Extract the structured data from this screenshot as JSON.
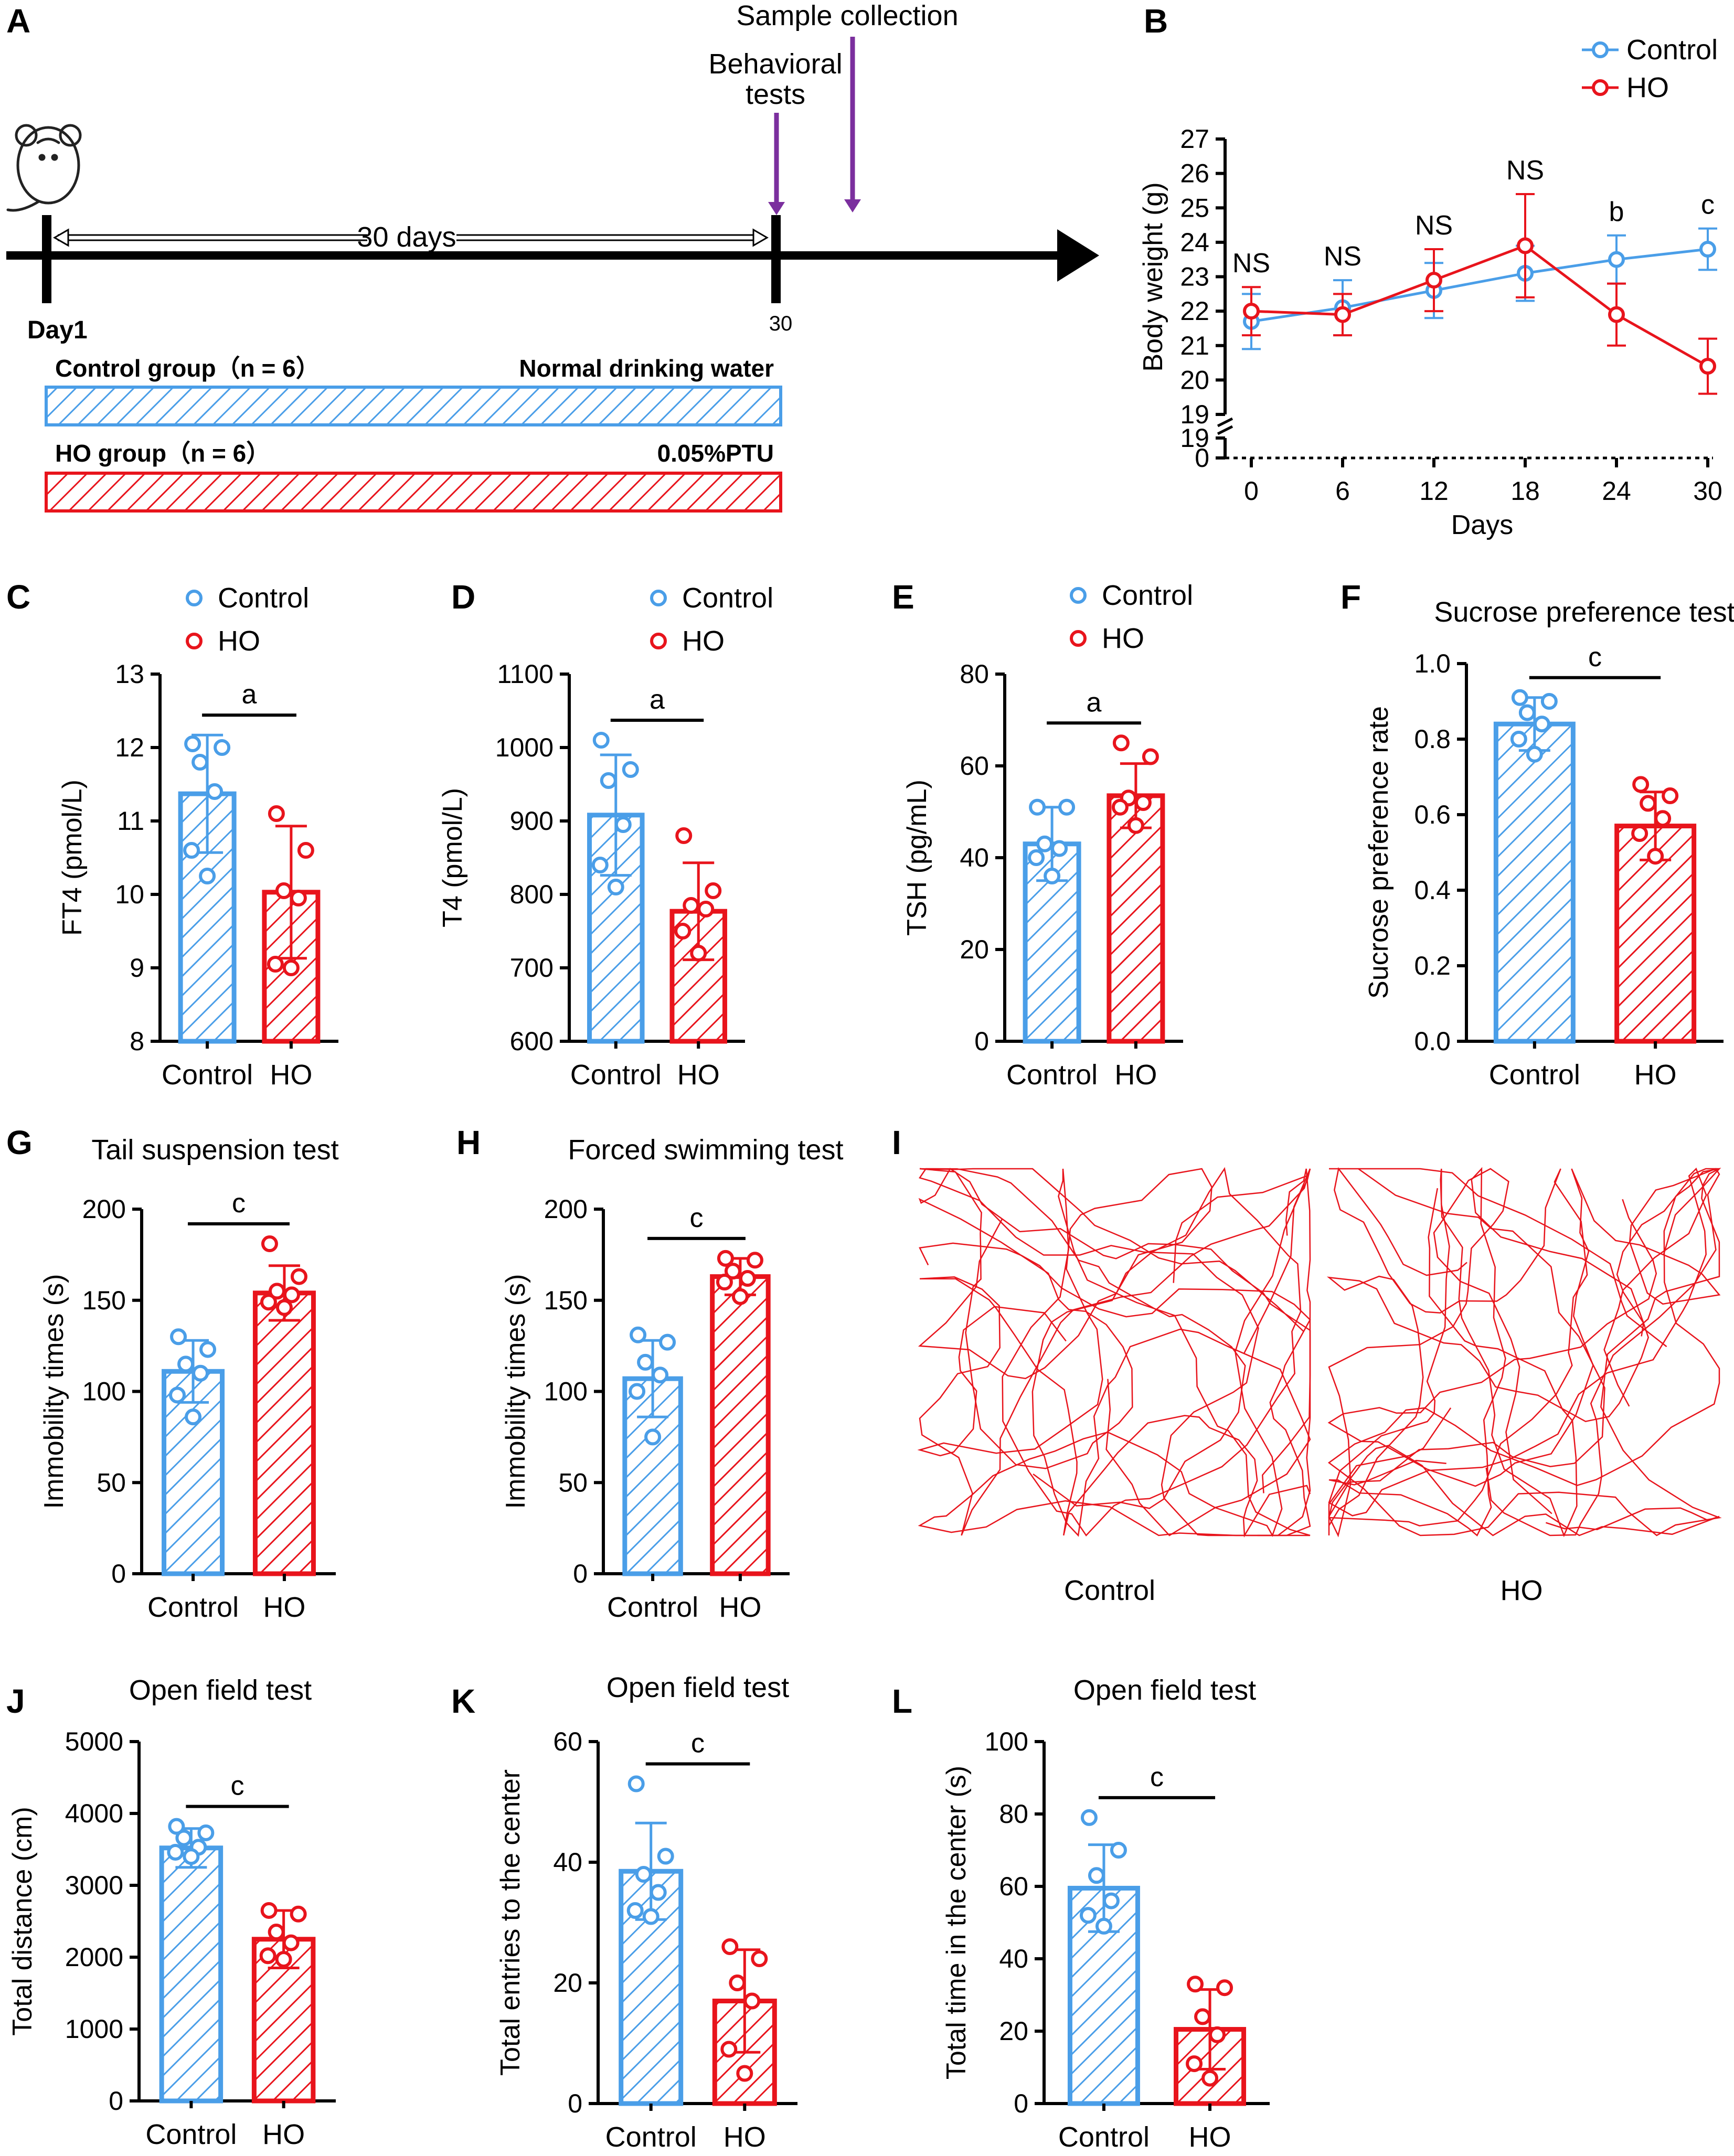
{
  "colors": {
    "control": "#4a9ee8",
    "ho": "#e8141c",
    "arrow": "#7b2f9e",
    "axis": "#000000"
  },
  "panel_letters": [
    "A",
    "B",
    "C",
    "D",
    "E",
    "F",
    "G",
    "H",
    "I",
    "J",
    "K",
    "L"
  ],
  "timeline": {
    "sample_collection": "Sample collection",
    "behavioral_tests": "Behavioral tests",
    "duration": "30 days",
    "day_start": "Day1",
    "day_end": "30",
    "control_group": "Control group（n = 6）",
    "control_treatment": "Normal drinking water",
    "ho_group": "HO group（n = 6）",
    "ho_treatment": "0.05%PTU"
  },
  "open_field_images": {
    "labels": [
      "Control",
      "HO"
    ]
  },
  "chart_data": [
    {
      "panel": "B",
      "type": "line",
      "xlabel": "Days",
      "ylabel": "Body weight (g)",
      "x": [
        0,
        6,
        12,
        18,
        24,
        30
      ],
      "ylim": [
        19,
        27
      ],
      "yticks": [
        19,
        20,
        21,
        22,
        23,
        24,
        25,
        26,
        27
      ],
      "ybreak_ticks": [
        0,
        19
      ],
      "series": [
        {
          "name": "Control",
          "values": [
            21.7,
            22.1,
            22.6,
            23.1,
            23.5,
            23.8
          ],
          "err": [
            0.8,
            0.8,
            0.8,
            0.8,
            0.7,
            0.6
          ]
        },
        {
          "name": "HO",
          "values": [
            22.0,
            21.9,
            22.9,
            23.9,
            21.9,
            20.4
          ],
          "err": [
            0.7,
            0.6,
            0.9,
            1.5,
            0.9,
            0.8
          ]
        }
      ],
      "annotations": [
        "NS",
        "NS",
        "NS",
        "NS",
        "b",
        "c"
      ]
    },
    {
      "panel": "C",
      "type": "bar",
      "title": "",
      "ylabel": "FT4 (pmol/L)",
      "categories": [
        "Control",
        "HO"
      ],
      "legend": [
        "Control",
        "HO"
      ],
      "ylim": [
        8,
        13
      ],
      "yticks": [
        8,
        9,
        10,
        11,
        12,
        13
      ],
      "means": [
        11.37,
        10.03
      ],
      "sd": [
        0.8,
        0.9
      ],
      "points": [
        [
          12.05,
          12.0,
          11.8,
          11.4,
          10.6,
          10.25
        ],
        [
          11.1,
          10.6,
          10.05,
          9.95,
          9.05,
          9.0
        ]
      ],
      "sig": "a"
    },
    {
      "panel": "D",
      "type": "bar",
      "title": "",
      "ylabel": "T4 (pmol/L)",
      "categories": [
        "Control",
        "HO"
      ],
      "legend": [
        "Control",
        "HO"
      ],
      "ylim": [
        600,
        1100
      ],
      "yticks": [
        600,
        700,
        800,
        900,
        1000,
        1100
      ],
      "means": [
        908,
        777
      ],
      "sd": [
        82,
        66
      ],
      "points": [
        [
          1010,
          970,
          955,
          895,
          840,
          810
        ],
        [
          880,
          805,
          785,
          780,
          750,
          720
        ]
      ],
      "sig": "a"
    },
    {
      "panel": "E",
      "type": "bar",
      "title": "",
      "ylabel": "TSH (pg/mL)",
      "categories": [
        "Control",
        "HO"
      ],
      "legend": [
        "Control",
        "HO"
      ],
      "ylim": [
        0,
        80
      ],
      "yticks": [
        0,
        20,
        40,
        60,
        80
      ],
      "means": [
        43,
        53.5
      ],
      "sd": [
        8,
        7
      ],
      "points": [
        [
          51,
          51,
          43,
          42,
          40,
          36
        ],
        [
          65,
          62,
          53,
          52,
          51,
          47
        ]
      ],
      "sig": "a"
    },
    {
      "panel": "F",
      "type": "bar",
      "title": "Sucrose preference test",
      "ylabel": "Sucrose preference rate",
      "categories": [
        "Control",
        "HO"
      ],
      "ylim": [
        0,
        1.0
      ],
      "yticks": [
        0.0,
        0.2,
        0.4,
        0.6,
        0.8,
        1.0
      ],
      "means": [
        0.84,
        0.57
      ],
      "sd": [
        0.07,
        0.09
      ],
      "points": [
        [
          0.91,
          0.9,
          0.87,
          0.84,
          0.8,
          0.76
        ],
        [
          0.68,
          0.65,
          0.63,
          0.59,
          0.55,
          0.49
        ]
      ],
      "sig": "c"
    },
    {
      "panel": "G",
      "type": "bar",
      "title": "Tail suspension test",
      "ylabel": "Immobility times (s)",
      "categories": [
        "Control",
        "HO"
      ],
      "ylim": [
        0,
        200
      ],
      "yticks": [
        0,
        50,
        100,
        150,
        200
      ],
      "means": [
        111,
        154
      ],
      "sd": [
        17,
        15
      ],
      "points": [
        [
          130,
          123,
          115,
          110,
          98,
          86
        ],
        [
          181,
          163,
          155,
          153,
          149,
          146
        ]
      ],
      "sig": "c"
    },
    {
      "panel": "H",
      "type": "bar",
      "title": "Forced swimming test",
      "ylabel": "Immobility times (s)",
      "categories": [
        "Control",
        "HO"
      ],
      "ylim": [
        0,
        200
      ],
      "yticks": [
        0,
        50,
        100,
        150,
        200
      ],
      "means": [
        107,
        163
      ],
      "sd": [
        21,
        10
      ],
      "points": [
        [
          131,
          127,
          116,
          109,
          100,
          75
        ],
        [
          173,
          172,
          166,
          162,
          160,
          152
        ]
      ],
      "sig": "c"
    },
    {
      "panel": "J",
      "type": "bar",
      "title": "Open field test",
      "ylabel": "Total distance (cm)",
      "categories": [
        "Control",
        "HO"
      ],
      "ylim": [
        0,
        5000
      ],
      "yticks": [
        0,
        1000,
        2000,
        3000,
        4000,
        5000
      ],
      "means": [
        3520,
        2250
      ],
      "sd": [
        270,
        400
      ],
      "points": [
        [
          3820,
          3730,
          3660,
          3530,
          3460,
          3400
        ],
        [
          2650,
          2600,
          2350,
          2200,
          2020,
          1970
        ]
      ],
      "sig": "c"
    },
    {
      "panel": "K",
      "type": "bar",
      "title": "Open field test",
      "ylabel": "Total entries to the center",
      "categories": [
        "Control",
        "HO"
      ],
      "ylim": [
        0,
        60
      ],
      "yticks": [
        0,
        20,
        40,
        60
      ],
      "means": [
        38.5,
        17
      ],
      "sd": [
        8,
        8.5
      ],
      "points": [
        [
          53,
          41,
          38,
          35,
          32,
          31
        ],
        [
          26,
          24,
          20,
          17,
          9,
          5
        ]
      ],
      "sig": "c"
    },
    {
      "panel": "L",
      "type": "bar",
      "title": "Open field test",
      "ylabel": "Total time in the center (s)",
      "categories": [
        "Control",
        "HO"
      ],
      "ylim": [
        0,
        100
      ],
      "yticks": [
        0,
        20,
        40,
        60,
        80,
        100
      ],
      "means": [
        59.5,
        20.5
      ],
      "sd": [
        12,
        11
      ],
      "points": [
        [
          79,
          70,
          63,
          56,
          52,
          49
        ],
        [
          33,
          32,
          24,
          19,
          11,
          7
        ]
      ],
      "sig": "c"
    }
  ]
}
